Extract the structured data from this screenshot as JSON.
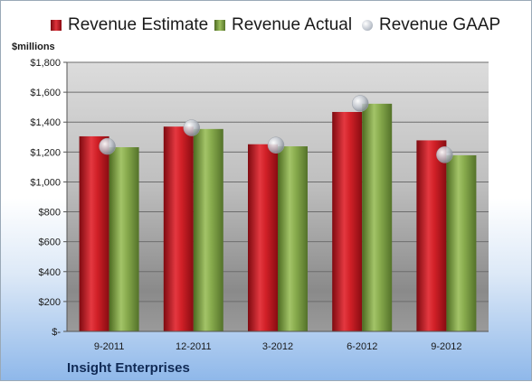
{
  "chart_data": {
    "type": "bar",
    "categories": [
      "9-2011",
      "12-2011",
      "3-2012",
      "6-2012",
      "9-2012"
    ],
    "series": [
      {
        "name": "Revenue Estimate",
        "kind": "bar",
        "color": "#c8141e",
        "values": [
          1305,
          1370,
          1252,
          1468,
          1278
        ]
      },
      {
        "name": "Revenue Actual",
        "kind": "bar",
        "color": "#7b9e3f",
        "values": [
          1232,
          1354,
          1238,
          1523,
          1178
        ]
      },
      {
        "name": "Revenue GAAP",
        "kind": "marker",
        "color": "#c0c6cf",
        "values": [
          1238,
          1362,
          1246,
          1525,
          1182
        ]
      }
    ],
    "ylabel": "$millions",
    "ylim": [
      0,
      1800
    ],
    "yticks": [
      0,
      200,
      400,
      600,
      800,
      1000,
      1200,
      1400,
      1600,
      1800
    ],
    "ytick_labels": [
      "$-",
      "$200",
      "$400",
      "$600",
      "$800",
      "$1,000",
      "$1,200",
      "$1,400",
      "$1,600",
      "$1,800"
    ],
    "legend_position": "top",
    "grid": true
  },
  "footer": {
    "source": "Insight Enterprises"
  }
}
